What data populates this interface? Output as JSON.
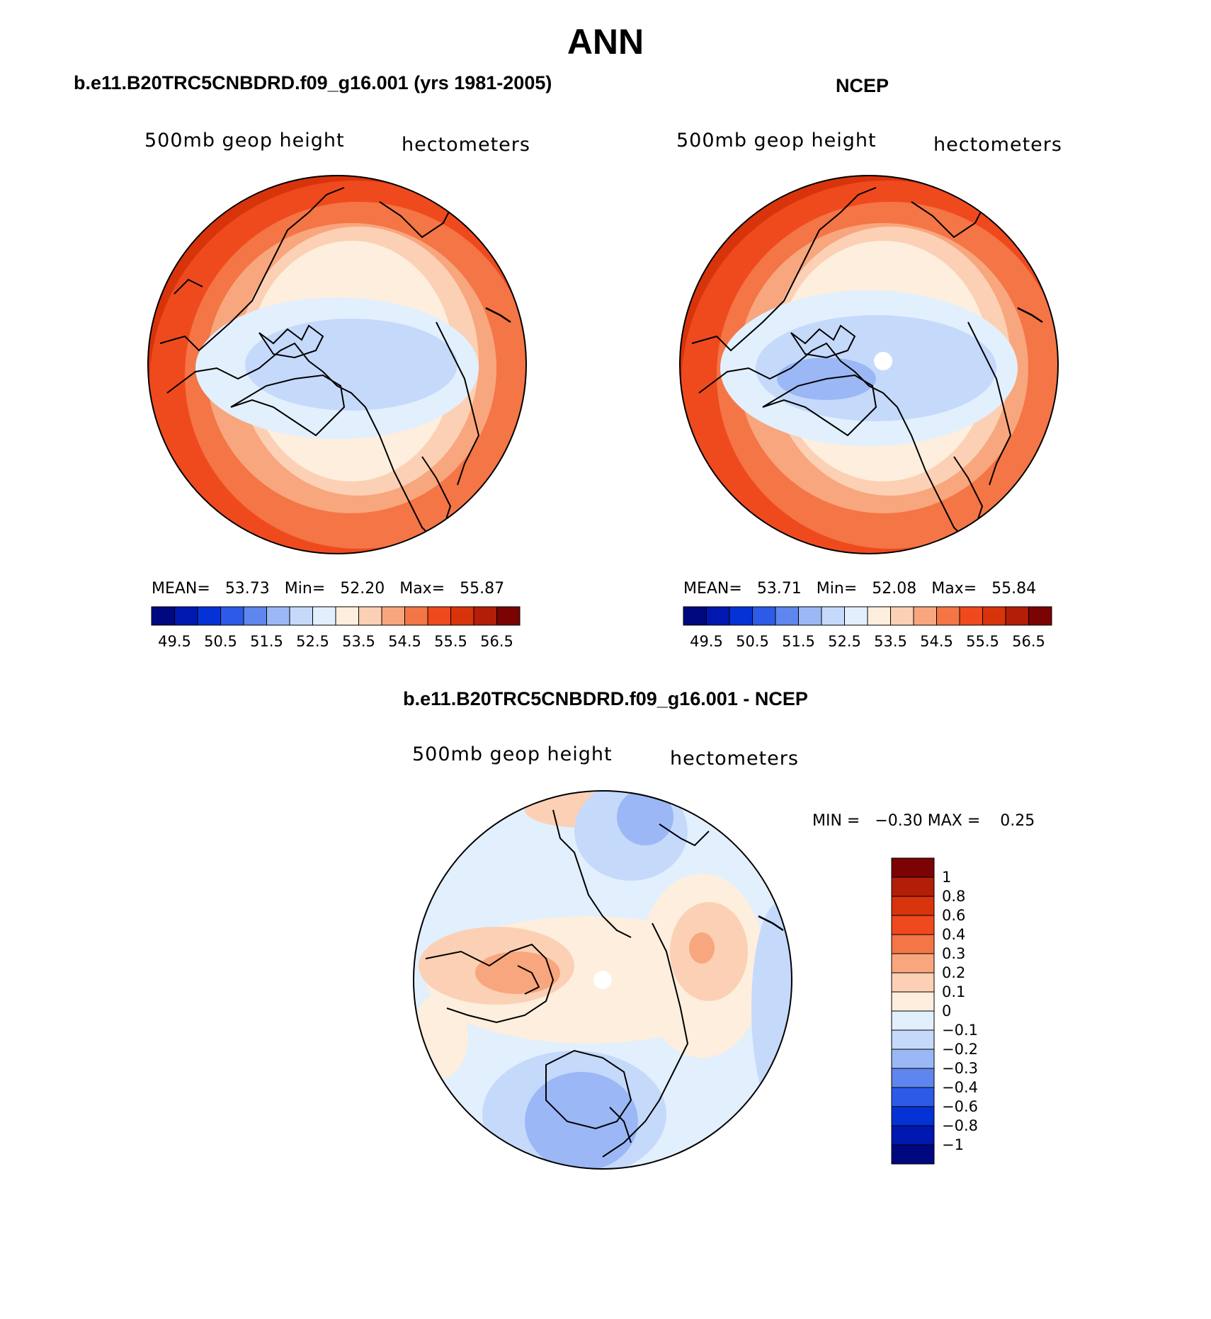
{
  "title": "ANN",
  "panels": [
    {
      "heading": "b.e11.B20TRC5CNBDRD.f09_g16.001 (yrs 1981-2005)",
      "variable": "500mb geop height",
      "units": "hectometers",
      "stats": {
        "mean_label": "MEAN=",
        "mean": "53.73",
        "min_label": "Min=",
        "min": "52.20",
        "max_label": "Max=",
        "max": "55.87"
      }
    },
    {
      "heading": "NCEP",
      "variable": "500mb geop height",
      "units": "hectometers",
      "stats": {
        "mean_label": "MEAN=",
        "mean": "53.71",
        "min_label": "Min=",
        "min": "52.08",
        "max_label": "Max=",
        "max": "55.84"
      }
    },
    {
      "heading": "b.e11.B20TRC5CNBDRD.f09_g16.001 - NCEP",
      "variable": "500mb geop height",
      "units": "hectometers",
      "stats": {
        "min_label": "MIN =",
        "min": "−0.30",
        "max_label": "MAX =",
        "max": "0.25"
      }
    }
  ],
  "abs_colorbar": {
    "ticks": [
      "49.5",
      "50.5",
      "51.5",
      "52.5",
      "53.5",
      "54.5",
      "55.5",
      "56.5"
    ],
    "colors": [
      "#00087f",
      "#0018b0",
      "#0532d6",
      "#2d5be8",
      "#5f86ee",
      "#9bb7f5",
      "#c5d9fb",
      "#e2effd",
      "#fdeedd",
      "#fcd0b4",
      "#f8a67d",
      "#f47545",
      "#ef4a1e",
      "#d8340c",
      "#b21e07",
      "#7b0303"
    ]
  },
  "diff_colorbar": {
    "ticks": [
      "1",
      "0.8",
      "0.6",
      "0.4",
      "0.3",
      "0.2",
      "0.1",
      "0",
      "−0.1",
      "−0.2",
      "−0.3",
      "−0.4",
      "−0.6",
      "−0.8",
      "−1"
    ],
    "colors": [
      "#7b0303",
      "#b21e07",
      "#d8340c",
      "#ef4a1e",
      "#f47545",
      "#f8a67d",
      "#fcd0b4",
      "#fdeedd",
      "#e2effd",
      "#c5d9fb",
      "#9bb7f5",
      "#5f86ee",
      "#2d5be8",
      "#0532d6",
      "#0018b0",
      "#00087f"
    ]
  }
}
